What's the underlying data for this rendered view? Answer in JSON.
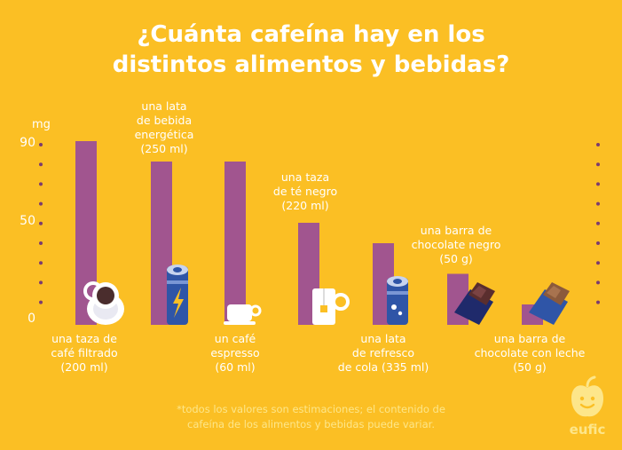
{
  "title_lines": [
    "¿Cuánta cafeína hay en los",
    "distintos alimentos y bebidas?"
  ],
  "footnote_lines": [
    "*todos los valores son estimaciones; el contenido de",
    "cafeína de los alimentos y bebidas puede variar."
  ],
  "brand": "eufic",
  "colors": {
    "background": "#fbbf24",
    "bar": "#a1558f",
    "dots": "#7b3b6e",
    "text": "#ffffff"
  },
  "chart_data": {
    "type": "bar",
    "title": "¿Cuánta cafeína hay en los distintos alimentos y bebidas?",
    "ylabel": "mg",
    "yticks": [
      0,
      50,
      90
    ],
    "ylim": [
      0,
      90
    ],
    "categories": [
      "una taza de café filtrado (200 ml)",
      "una lata de bebida energética (250 ml)",
      "un café espresso (60 ml)",
      "una taza de té negro (220 ml)",
      "una lata de refresco de cola (335 ml)",
      "una barra de chocolate negro (50 g)",
      "una barra de chocolate con leche (50 g)"
    ],
    "label_lines": [
      [
        "una taza de",
        "café filtrado",
        "(200 ml)"
      ],
      [
        "una lata",
        "de bebida",
        "energética",
        "(250 ml)"
      ],
      [
        "un café",
        "espresso",
        "(60 ml)"
      ],
      [
        "una taza",
        "de té negro",
        "(220 ml)"
      ],
      [
        "una lata",
        "de refresco",
        "de cola (335 ml)"
      ],
      [
        "una barra de",
        "chocolate negro",
        "(50 g)"
      ],
      [
        "una barra de",
        "chocolate con leche",
        "(50 g)"
      ]
    ],
    "label_positions": [
      "below",
      "above",
      "below",
      "above",
      "below",
      "above",
      "below"
    ],
    "icons": [
      "coffee-cup-icon",
      "energy-drink-can-icon",
      "espresso-cup-icon",
      "tea-mug-icon",
      "cola-can-icon",
      "dark-chocolate-icon",
      "milk-chocolate-icon"
    ],
    "values": [
      90,
      80,
      80,
      50,
      40,
      25,
      10
    ],
    "grid": false
  }
}
